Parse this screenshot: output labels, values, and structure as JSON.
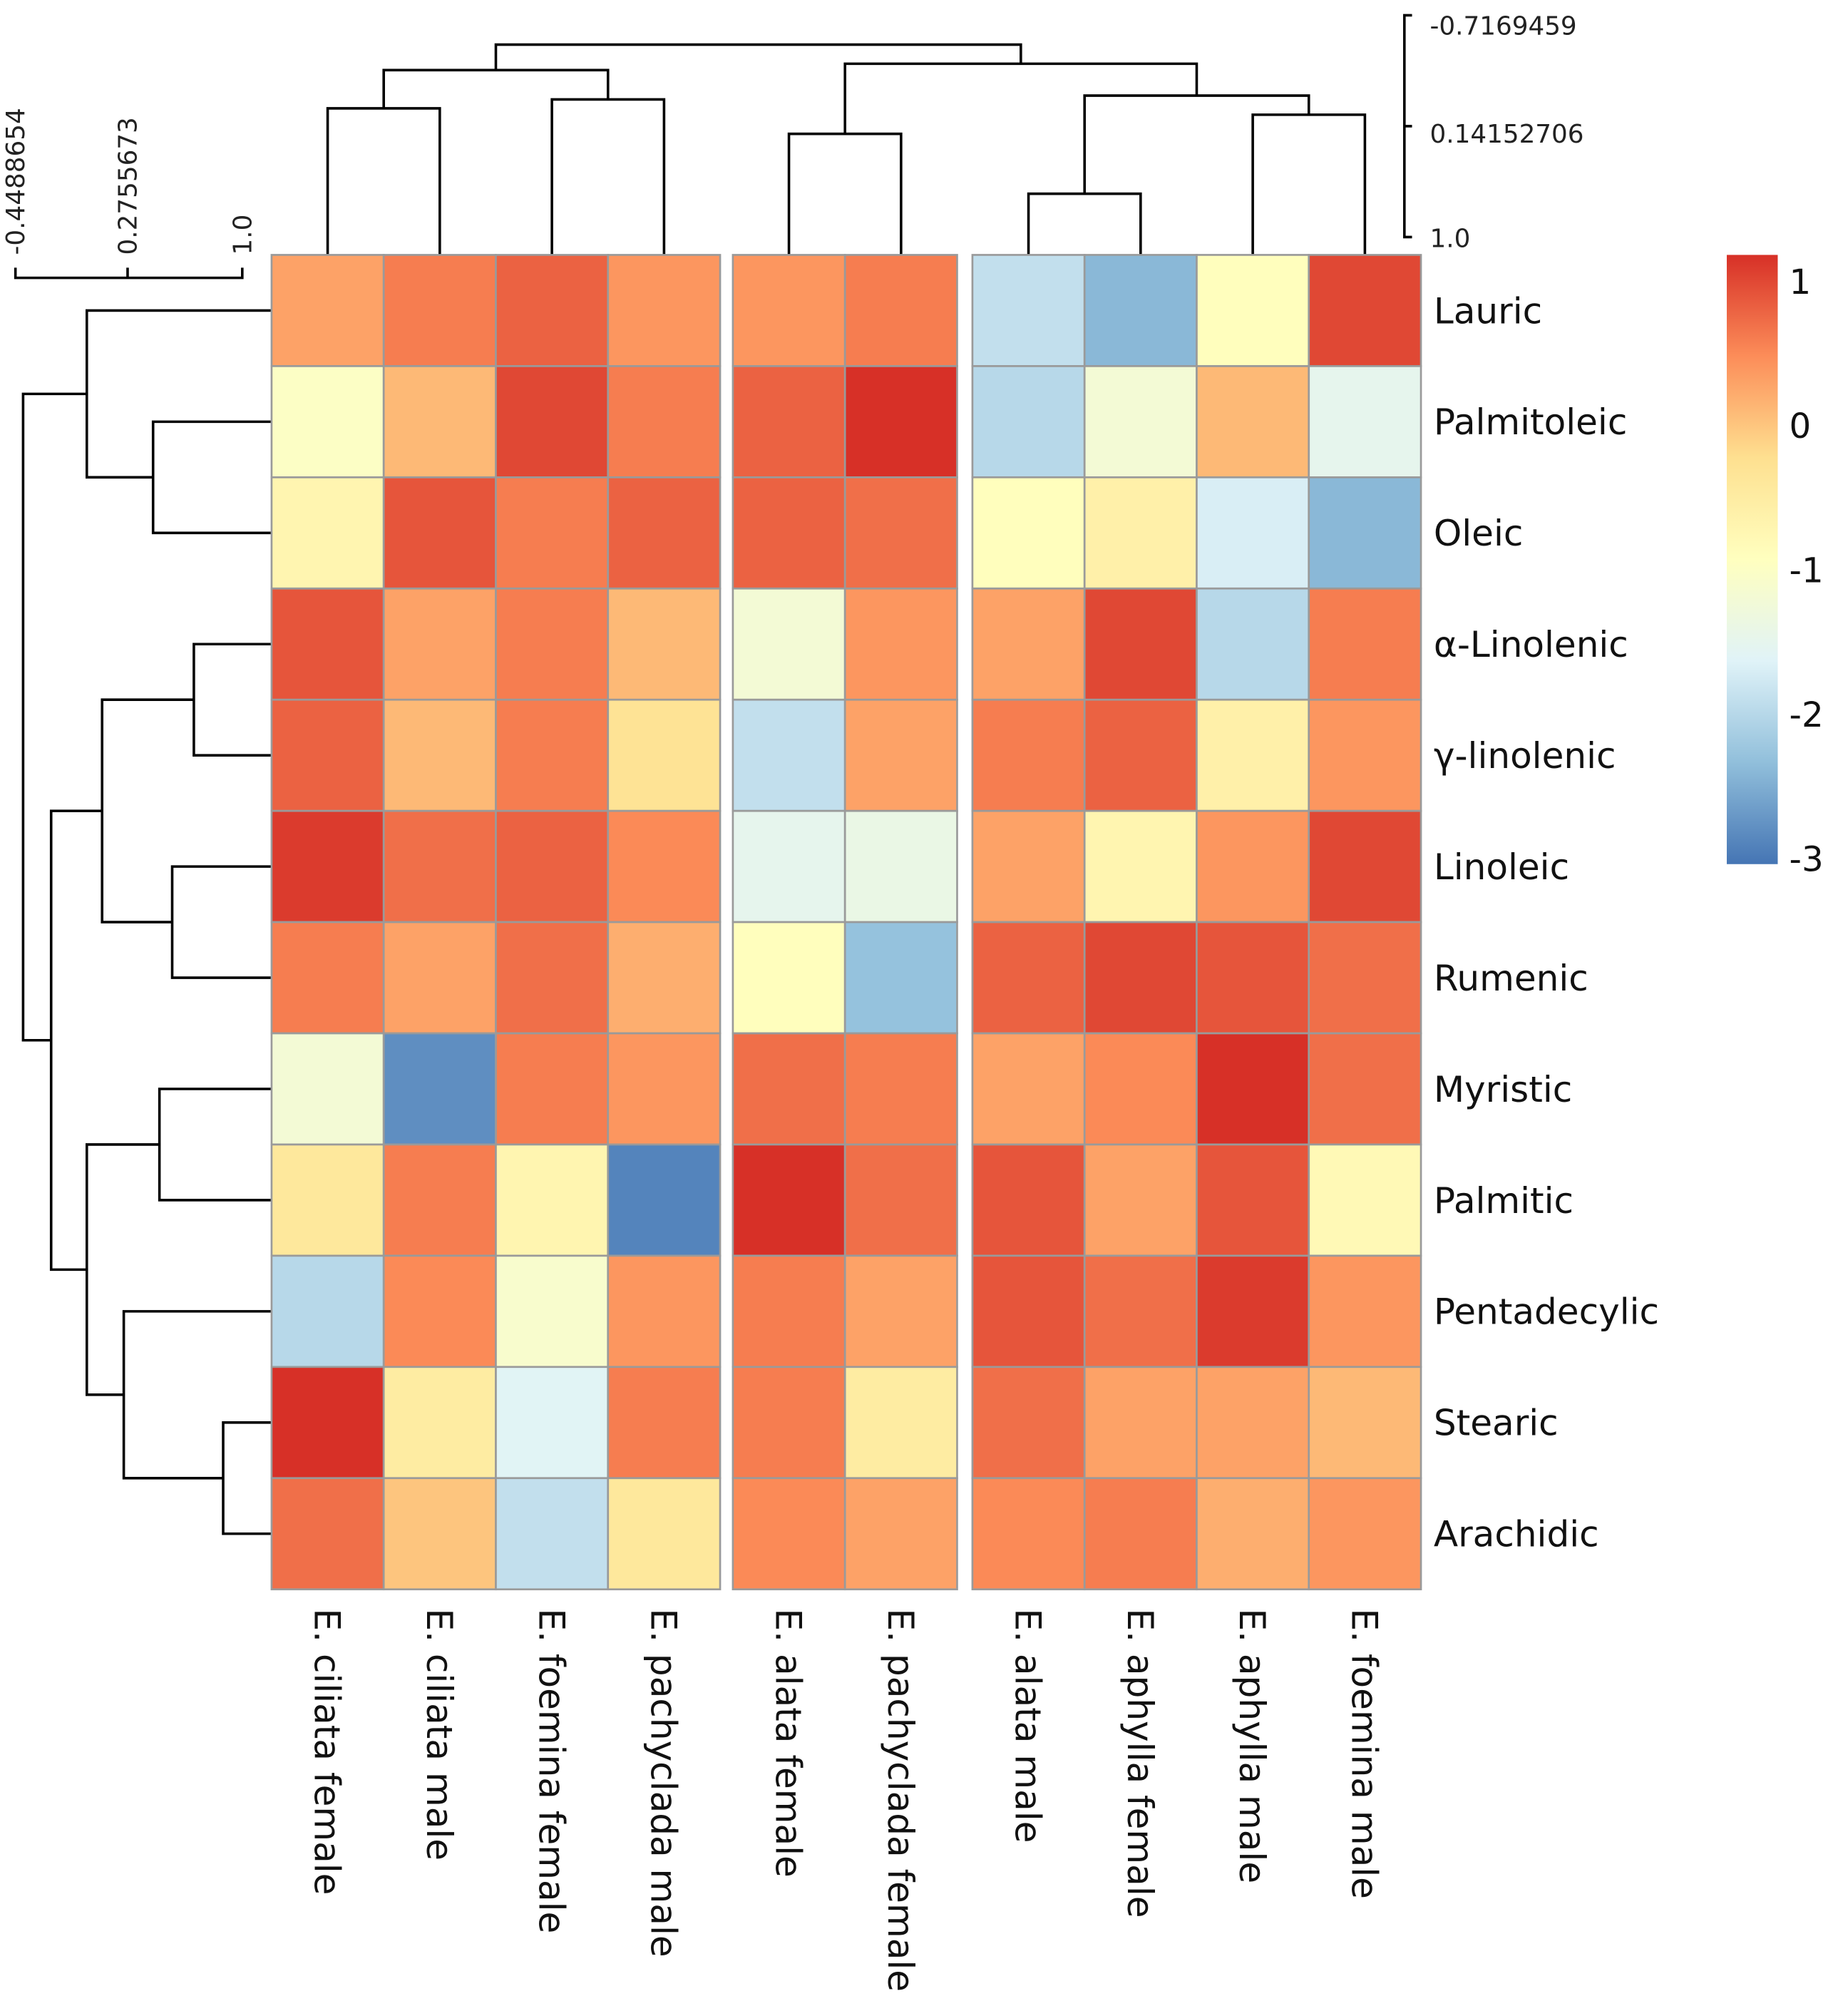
{
  "chart_data": {
    "type": "heatmap",
    "title": "",
    "columns": [
      "E. ciliata female",
      "E. ciliata male",
      "E. foemina female",
      "E. pachyclada male",
      "E. alata female",
      "E. pachyclada female",
      "E. alata male",
      "E. aphylla female",
      "E. aphylla male",
      "E. foemina male"
    ],
    "column_groups": [
      4,
      2,
      4
    ],
    "rows": [
      "Lauric",
      "Palmitoleic",
      "Oleic",
      "α-Linolenic",
      "γ-linolenic",
      "Linoleic",
      "Rumenic",
      "Myristic",
      "Palmitic",
      "Pentadecylic",
      "Stearic",
      "Arachidic"
    ],
    "values": [
      [
        0.3,
        0.6,
        0.8,
        0.4,
        0.4,
        0.6,
        -1.9,
        -2.4,
        -0.9,
        1.0
      ],
      [
        -1.0,
        0.1,
        1.0,
        0.6,
        0.8,
        1.2,
        -2.0,
        -1.2,
        0.1,
        -1.5
      ],
      [
        -0.7,
        0.9,
        0.6,
        0.8,
        0.8,
        0.7,
        -0.9,
        -0.6,
        -1.7,
        -2.4
      ],
      [
        0.9,
        0.3,
        0.6,
        0.1,
        -1.2,
        0.4,
        0.3,
        1.0,
        -2.0,
        0.6
      ],
      [
        0.8,
        0.1,
        0.6,
        -0.3,
        -1.9,
        0.3,
        0.6,
        0.8,
        -0.6,
        0.4
      ],
      [
        1.1,
        0.7,
        0.8,
        0.5,
        -1.5,
        -1.4,
        0.3,
        -0.7,
        0.4,
        1.0
      ],
      [
        0.6,
        0.3,
        0.7,
        0.2,
        -0.9,
        -2.3,
        0.8,
        1.0,
        0.9,
        0.7
      ],
      [
        -1.2,
        -2.8,
        0.6,
        0.4,
        0.7,
        0.6,
        0.3,
        0.5,
        1.2,
        0.7
      ],
      [
        -0.4,
        0.6,
        -0.7,
        -2.9,
        1.2,
        0.7,
        0.9,
        0.3,
        0.9,
        -0.8
      ],
      [
        -2.0,
        0.5,
        -1.1,
        0.4,
        0.6,
        0.3,
        0.9,
        0.7,
        1.1,
        0.4
      ],
      [
        1.2,
        -0.5,
        -1.6,
        0.6,
        0.6,
        -0.5,
        0.7,
        0.3,
        0.3,
        0.1
      ],
      [
        0.7,
        0.0,
        -1.9,
        -0.4,
        0.5,
        0.3,
        0.5,
        0.6,
        0.2,
        0.4
      ]
    ],
    "colorbar": {
      "ticks": [
        "1",
        "0",
        "-1",
        "-2",
        "-3"
      ],
      "range": [
        -3.04,
        1.18
      ],
      "colors": [
        "#4575b4",
        "#91bfdb",
        "#e0f3f8",
        "#ffffbf",
        "#fee090",
        "#fc8d59",
        "#d73027"
      ]
    },
    "col_dendrogram_scale": [
      "-0.7169459",
      "0.14152706",
      "1.0"
    ],
    "row_dendrogram_scale": [
      "-0.4488654",
      "0.2755673",
      "1.0"
    ]
  }
}
